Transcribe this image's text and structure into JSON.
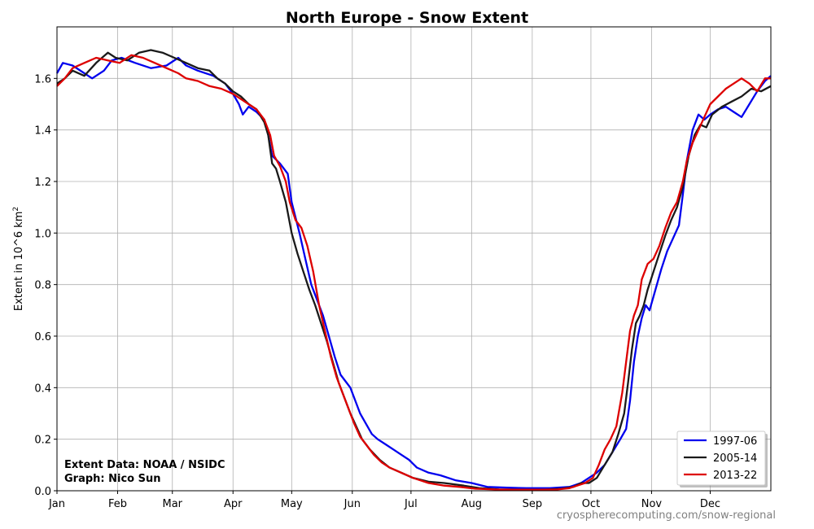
{
  "chart_data": {
    "type": "line",
    "title": "North Europe - Snow Extent",
    "ylabel": "Extent in 10^6 km",
    "ylabel_sup": "2",
    "xlabel": "",
    "x_ticks": [
      {
        "label": "Jan",
        "day": 0
      },
      {
        "label": "Feb",
        "day": 31
      },
      {
        "label": "Mar",
        "day": 59
      },
      {
        "label": "Apr",
        "day": 90
      },
      {
        "label": "May",
        "day": 120
      },
      {
        "label": "Jun",
        "day": 151
      },
      {
        "label": "Jul",
        "day": 181
      },
      {
        "label": "Aug",
        "day": 212
      },
      {
        "label": "Sep",
        "day": 243
      },
      {
        "label": "Oct",
        "day": 273
      },
      {
        "label": "Nov",
        "day": 304
      },
      {
        "label": "Dec",
        "day": 334
      }
    ],
    "xlim": [
      0,
      365
    ],
    "ylim": [
      0,
      1.8
    ],
    "y_ticks": [
      0.0,
      0.2,
      0.4,
      0.6,
      0.8,
      1.0,
      1.2,
      1.4,
      1.6
    ],
    "grid": true,
    "legend_position": "bottom-right",
    "series": [
      {
        "name": "1997-06",
        "color": "#0000ee",
        "points": [
          [
            0,
            1.62
          ],
          [
            3,
            1.66
          ],
          [
            8,
            1.65
          ],
          [
            14,
            1.62
          ],
          [
            18,
            1.6
          ],
          [
            24,
            1.63
          ],
          [
            28,
            1.67
          ],
          [
            33,
            1.68
          ],
          [
            40,
            1.66
          ],
          [
            48,
            1.64
          ],
          [
            56,
            1.65
          ],
          [
            62,
            1.68
          ],
          [
            66,
            1.65
          ],
          [
            72,
            1.63
          ],
          [
            80,
            1.61
          ],
          [
            86,
            1.58
          ],
          [
            90,
            1.54
          ],
          [
            93,
            1.5
          ],
          [
            95,
            1.46
          ],
          [
            98,
            1.49
          ],
          [
            102,
            1.47
          ],
          [
            106,
            1.44
          ],
          [
            108,
            1.38
          ],
          [
            110,
            1.3
          ],
          [
            114,
            1.27
          ],
          [
            118,
            1.23
          ],
          [
            120,
            1.12
          ],
          [
            124,
            1.0
          ],
          [
            127,
            0.9
          ],
          [
            130,
            0.8
          ],
          [
            133,
            0.74
          ],
          [
            136,
            0.68
          ],
          [
            139,
            0.6
          ],
          [
            142,
            0.52
          ],
          [
            145,
            0.45
          ],
          [
            148,
            0.42
          ],
          [
            150,
            0.4
          ],
          [
            152,
            0.36
          ],
          [
            155,
            0.3
          ],
          [
            158,
            0.26
          ],
          [
            161,
            0.22
          ],
          [
            164,
            0.2
          ],
          [
            168,
            0.18
          ],
          [
            172,
            0.16
          ],
          [
            176,
            0.14
          ],
          [
            180,
            0.12
          ],
          [
            184,
            0.09
          ],
          [
            190,
            0.07
          ],
          [
            196,
            0.06
          ],
          [
            204,
            0.04
          ],
          [
            212,
            0.03
          ],
          [
            220,
            0.015
          ],
          [
            230,
            0.012
          ],
          [
            240,
            0.01
          ],
          [
            252,
            0.01
          ],
          [
            262,
            0.015
          ],
          [
            268,
            0.03
          ],
          [
            272,
            0.05
          ],
          [
            276,
            0.07
          ],
          [
            280,
            0.1
          ],
          [
            284,
            0.15
          ],
          [
            288,
            0.2
          ],
          [
            291,
            0.24
          ],
          [
            293,
            0.35
          ],
          [
            295,
            0.5
          ],
          [
            297,
            0.6
          ],
          [
            299,
            0.67
          ],
          [
            301,
            0.72
          ],
          [
            303,
            0.7
          ],
          [
            306,
            0.78
          ],
          [
            309,
            0.86
          ],
          [
            312,
            0.93
          ],
          [
            315,
            0.98
          ],
          [
            318,
            1.03
          ],
          [
            320,
            1.15
          ],
          [
            322,
            1.28
          ],
          [
            325,
            1.4
          ],
          [
            328,
            1.46
          ],
          [
            331,
            1.44
          ],
          [
            334,
            1.46
          ],
          [
            338,
            1.48
          ],
          [
            342,
            1.49
          ],
          [
            346,
            1.47
          ],
          [
            350,
            1.45
          ],
          [
            354,
            1.5
          ],
          [
            358,
            1.55
          ],
          [
            362,
            1.59
          ],
          [
            365,
            1.61
          ]
        ]
      },
      {
        "name": "2005-14",
        "color": "#1a1a1a",
        "points": [
          [
            0,
            1.58
          ],
          [
            4,
            1.6
          ],
          [
            8,
            1.63
          ],
          [
            14,
            1.61
          ],
          [
            20,
            1.66
          ],
          [
            26,
            1.7
          ],
          [
            30,
            1.68
          ],
          [
            36,
            1.67
          ],
          [
            42,
            1.7
          ],
          [
            48,
            1.71
          ],
          [
            54,
            1.7
          ],
          [
            60,
            1.68
          ],
          [
            66,
            1.66
          ],
          [
            72,
            1.64
          ],
          [
            78,
            1.63
          ],
          [
            82,
            1.6
          ],
          [
            86,
            1.58
          ],
          [
            90,
            1.55
          ],
          [
            94,
            1.53
          ],
          [
            98,
            1.5
          ],
          [
            102,
            1.48
          ],
          [
            106,
            1.43
          ],
          [
            108,
            1.38
          ],
          [
            110,
            1.27
          ],
          [
            112,
            1.25
          ],
          [
            114,
            1.2
          ],
          [
            117,
            1.12
          ],
          [
            120,
            1.0
          ],
          [
            123,
            0.92
          ],
          [
            126,
            0.85
          ],
          [
            129,
            0.78
          ],
          [
            132,
            0.72
          ],
          [
            135,
            0.65
          ],
          [
            138,
            0.58
          ],
          [
            141,
            0.5
          ],
          [
            144,
            0.42
          ],
          [
            147,
            0.36
          ],
          [
            150,
            0.3
          ],
          [
            153,
            0.25
          ],
          [
            156,
            0.2
          ],
          [
            160,
            0.16
          ],
          [
            165,
            0.12
          ],
          [
            170,
            0.09
          ],
          [
            176,
            0.07
          ],
          [
            182,
            0.05
          ],
          [
            190,
            0.035
          ],
          [
            198,
            0.03
          ],
          [
            208,
            0.02
          ],
          [
            216,
            0.01
          ],
          [
            226,
            0.005
          ],
          [
            236,
            0.004
          ],
          [
            250,
            0.004
          ],
          [
            258,
            0.008
          ],
          [
            264,
            0.015
          ],
          [
            268,
            0.03
          ],
          [
            272,
            0.03
          ],
          [
            276,
            0.05
          ],
          [
            280,
            0.1
          ],
          [
            284,
            0.15
          ],
          [
            287,
            0.22
          ],
          [
            290,
            0.3
          ],
          [
            292,
            0.42
          ],
          [
            294,
            0.55
          ],
          [
            296,
            0.65
          ],
          [
            298,
            0.68
          ],
          [
            300,
            0.72
          ],
          [
            302,
            0.78
          ],
          [
            305,
            0.85
          ],
          [
            308,
            0.92
          ],
          [
            311,
            0.99
          ],
          [
            314,
            1.05
          ],
          [
            317,
            1.1
          ],
          [
            320,
            1.18
          ],
          [
            323,
            1.3
          ],
          [
            326,
            1.38
          ],
          [
            329,
            1.42
          ],
          [
            332,
            1.41
          ],
          [
            335,
            1.46
          ],
          [
            340,
            1.49
          ],
          [
            345,
            1.51
          ],
          [
            350,
            1.53
          ],
          [
            355,
            1.56
          ],
          [
            360,
            1.55
          ],
          [
            365,
            1.57
          ]
        ]
      },
      {
        "name": "2013-22",
        "color": "#dd0000",
        "points": [
          [
            0,
            1.57
          ],
          [
            4,
            1.6
          ],
          [
            8,
            1.64
          ],
          [
            14,
            1.66
          ],
          [
            20,
            1.68
          ],
          [
            26,
            1.67
          ],
          [
            32,
            1.66
          ],
          [
            38,
            1.69
          ],
          [
            44,
            1.68
          ],
          [
            50,
            1.66
          ],
          [
            56,
            1.64
          ],
          [
            62,
            1.62
          ],
          [
            66,
            1.6
          ],
          [
            72,
            1.59
          ],
          [
            78,
            1.57
          ],
          [
            84,
            1.56
          ],
          [
            90,
            1.54
          ],
          [
            94,
            1.52
          ],
          [
            98,
            1.5
          ],
          [
            102,
            1.48
          ],
          [
            106,
            1.44
          ],
          [
            109,
            1.38
          ],
          [
            111,
            1.3
          ],
          [
            114,
            1.26
          ],
          [
            117,
            1.2
          ],
          [
            119,
            1.12
          ],
          [
            122,
            1.05
          ],
          [
            125,
            1.02
          ],
          [
            128,
            0.95
          ],
          [
            131,
            0.85
          ],
          [
            134,
            0.72
          ],
          [
            137,
            0.62
          ],
          [
            140,
            0.52
          ],
          [
            143,
            0.44
          ],
          [
            146,
            0.38
          ],
          [
            149,
            0.32
          ],
          [
            152,
            0.26
          ],
          [
            155,
            0.21
          ],
          [
            158,
            0.18
          ],
          [
            162,
            0.14
          ],
          [
            166,
            0.11
          ],
          [
            170,
            0.09
          ],
          [
            176,
            0.07
          ],
          [
            182,
            0.05
          ],
          [
            190,
            0.03
          ],
          [
            198,
            0.02
          ],
          [
            206,
            0.015
          ],
          [
            214,
            0.008
          ],
          [
            224,
            0.005
          ],
          [
            234,
            0.004
          ],
          [
            246,
            0.004
          ],
          [
            256,
            0.005
          ],
          [
            262,
            0.01
          ],
          [
            266,
            0.02
          ],
          [
            270,
            0.03
          ],
          [
            274,
            0.05
          ],
          [
            277,
            0.1
          ],
          [
            280,
            0.16
          ],
          [
            283,
            0.2
          ],
          [
            286,
            0.25
          ],
          [
            289,
            0.38
          ],
          [
            291,
            0.5
          ],
          [
            293,
            0.62
          ],
          [
            295,
            0.68
          ],
          [
            297,
            0.72
          ],
          [
            299,
            0.82
          ],
          [
            302,
            0.88
          ],
          [
            305,
            0.9
          ],
          [
            308,
            0.95
          ],
          [
            311,
            1.02
          ],
          [
            314,
            1.08
          ],
          [
            317,
            1.12
          ],
          [
            320,
            1.2
          ],
          [
            322,
            1.28
          ],
          [
            325,
            1.35
          ],
          [
            328,
            1.4
          ],
          [
            331,
            1.45
          ],
          [
            334,
            1.5
          ],
          [
            338,
            1.53
          ],
          [
            342,
            1.56
          ],
          [
            346,
            1.58
          ],
          [
            350,
            1.6
          ],
          [
            354,
            1.58
          ],
          [
            358,
            1.55
          ],
          [
            362,
            1.6
          ],
          [
            365,
            1.6
          ]
        ]
      }
    ],
    "annotations": [
      "Extent Data: NOAA / NSIDC",
      "Graph: Nico Sun"
    ],
    "watermark": "cryospherecomputing.com/snow-regional"
  }
}
